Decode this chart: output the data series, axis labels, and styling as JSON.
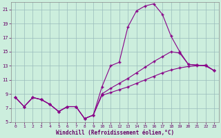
{
  "xlabel": "Windchill (Refroidissement éolien,°C)",
  "background_color": "#cceedd",
  "line_color": "#880088",
  "grid_color": "#99bbbb",
  "xlim": [
    -0.5,
    23.5
  ],
  "ylim": [
    5,
    22
  ],
  "yticks": [
    5,
    7,
    9,
    11,
    13,
    15,
    17,
    19,
    21
  ],
  "xticks": [
    0,
    1,
    2,
    3,
    4,
    5,
    6,
    7,
    8,
    9,
    10,
    11,
    12,
    13,
    14,
    15,
    16,
    17,
    18,
    19,
    20,
    21,
    22,
    23
  ],
  "line1_x": [
    0,
    1,
    2,
    3,
    4,
    5,
    6,
    7,
    8,
    9,
    10,
    11,
    12,
    13,
    14,
    15,
    16,
    17,
    18,
    19,
    20,
    21,
    22,
    23
  ],
  "line1_y": [
    8.5,
    7.2,
    8.5,
    8.2,
    7.5,
    6.5,
    7.2,
    7.2,
    5.5,
    6.0,
    10.0,
    13.0,
    13.5,
    18.5,
    20.8,
    21.5,
    21.8,
    20.3,
    17.2,
    15.0,
    13.2,
    13.1,
    13.0,
    12.3
  ],
  "line2_x": [
    0,
    1,
    2,
    3,
    4,
    5,
    6,
    7,
    8,
    9,
    10,
    11,
    12,
    13,
    14,
    15,
    16,
    17,
    18,
    19,
    20,
    21,
    22,
    23
  ],
  "line2_y": [
    8.5,
    7.2,
    8.5,
    8.2,
    7.5,
    6.5,
    7.2,
    7.2,
    5.5,
    6.0,
    9.0,
    9.8,
    10.5,
    11.2,
    12.0,
    12.8,
    13.6,
    14.3,
    15.0,
    14.8,
    13.2,
    13.1,
    13.0,
    12.3
  ],
  "line3_x": [
    0,
    1,
    2,
    3,
    4,
    5,
    6,
    7,
    8,
    9,
    10,
    11,
    12,
    13,
    14,
    15,
    16,
    17,
    18,
    19,
    20,
    21,
    22,
    23
  ],
  "line3_y": [
    8.5,
    7.2,
    8.5,
    8.2,
    7.5,
    6.5,
    7.2,
    7.2,
    5.5,
    6.0,
    8.8,
    9.2,
    9.6,
    10.0,
    10.5,
    11.0,
    11.5,
    12.0,
    12.4,
    12.7,
    12.9,
    13.0,
    13.1,
    12.3
  ]
}
